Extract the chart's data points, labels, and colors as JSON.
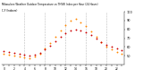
{
  "title_line1": "Milwaukee Weather Outdoor Temperature vs THSW Index per Hour (24 Hours)",
  "hours": [
    0,
    1,
    2,
    3,
    4,
    5,
    6,
    7,
    8,
    9,
    10,
    11,
    12,
    13,
    14,
    15,
    16,
    17,
    18,
    19,
    20,
    21,
    22,
    23
  ],
  "temp": [
    55,
    54,
    53,
    52,
    51,
    50,
    51,
    53,
    57,
    62,
    67,
    72,
    76,
    79,
    80,
    79,
    77,
    74,
    70,
    66,
    63,
    60,
    58,
    56
  ],
  "thsw": [
    52,
    51,
    50,
    49,
    48,
    47,
    49,
    52,
    58,
    65,
    72,
    79,
    85,
    90,
    92,
    88,
    84,
    78,
    72,
    66,
    61,
    57,
    54,
    52
  ],
  "temp_color": "#cc0000",
  "thsw_color": "#ff8800",
  "bg_color": "#ffffff",
  "grid_color": "#bbbbbb",
  "ylim": [
    40,
    100
  ],
  "yticks_right": [
    50,
    60,
    70,
    80,
    90,
    100
  ],
  "grid_hours": [
    4,
    8,
    12,
    16,
    20
  ],
  "marker_size": 1.8,
  "subtitle": "C,F (Indoors)"
}
